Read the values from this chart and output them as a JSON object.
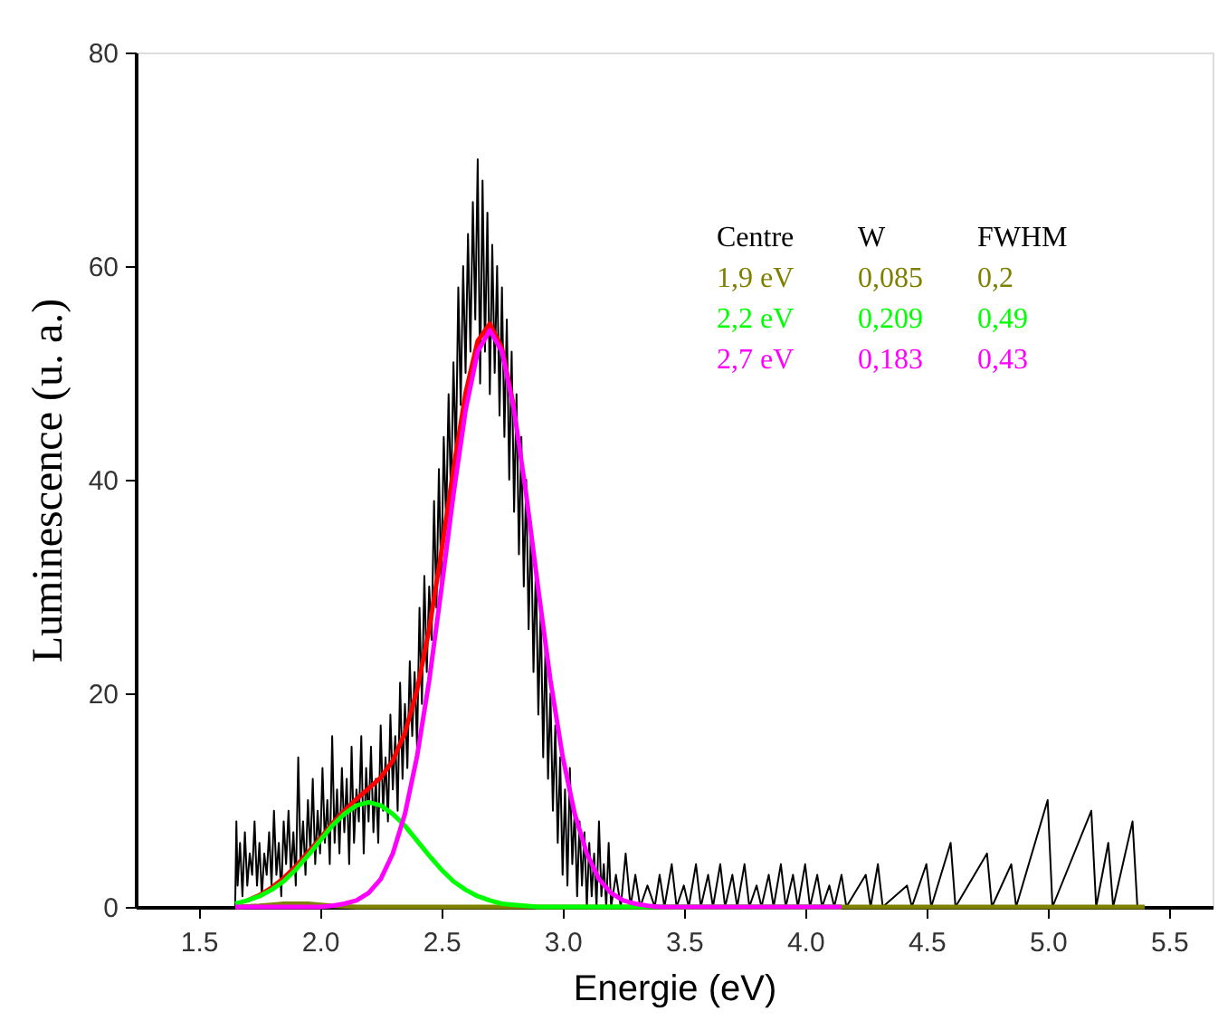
{
  "chart_data": {
    "type": "line",
    "xlabel": "Energie (eV)",
    "ylabel": "Luminescence (u. a.)",
    "xlim": [
      1.24,
      5.68
    ],
    "ylim": [
      0,
      80
    ],
    "xticks": [
      1.5,
      {
        "value": 2,
        "label": "2.0"
      },
      2.5,
      {
        "value": 3,
        "label": "3.0"
      },
      3.5,
      {
        "value": 4,
        "label": "4.0"
      },
      4.5,
      {
        "value": 5,
        "label": "5.0"
      },
      5.5
    ],
    "yticks": [
      0,
      20,
      40,
      60,
      80
    ],
    "grid": false,
    "marker": "none",
    "line_style": "solid",
    "annotations": [
      "Centre",
      "W",
      "FWHM",
      "1,9 eV",
      "0,085",
      "0,2",
      "2,2 eV",
      "0,209",
      "0,49",
      "2,7 eV",
      "0,183",
      "0,43"
    ],
    "series": [
      {
        "color": "#000000",
        "x": [
          1.65,
          1.655,
          1.66,
          1.67,
          1.68,
          1.69,
          1.7,
          1.71,
          1.72,
          1.73,
          1.74,
          1.75,
          1.76,
          1.77,
          1.78,
          1.79,
          1.8,
          1.81,
          1.82,
          1.83,
          1.84,
          1.85,
          1.86,
          1.87,
          1.88,
          1.89,
          1.9,
          1.91,
          1.92,
          1.93,
          1.94,
          1.95,
          1.96,
          1.97,
          1.98,
          1.99,
          2.0,
          2.01,
          2.02,
          2.03,
          2.04,
          2.05,
          2.06,
          2.07,
          2.08,
          2.09,
          2.1,
          2.11,
          2.12,
          2.13,
          2.14,
          2.15,
          2.16,
          2.17,
          2.18,
          2.19,
          2.2,
          2.21,
          2.22,
          2.23,
          2.24,
          2.25,
          2.26,
          2.27,
          2.28,
          2.29,
          2.3,
          2.31,
          2.32,
          2.33,
          2.34,
          2.35,
          2.36,
          2.37,
          2.38,
          2.39,
          2.4,
          2.41,
          2.42,
          2.43,
          2.44,
          2.45,
          2.46,
          2.47,
          2.48,
          2.49,
          2.5,
          2.51,
          2.52,
          2.53,
          2.54,
          2.55,
          2.56,
          2.57,
          2.58,
          2.59,
          2.6,
          2.61,
          2.62,
          2.63,
          2.64,
          2.65,
          2.66,
          2.67,
          2.68,
          2.69,
          2.7,
          2.71,
          2.72,
          2.73,
          2.74,
          2.75,
          2.76,
          2.77,
          2.78,
          2.79,
          2.8,
          2.81,
          2.82,
          2.83,
          2.84,
          2.85,
          2.86,
          2.87,
          2.88,
          2.89,
          2.9,
          2.91,
          2.92,
          2.93,
          2.94,
          2.95,
          2.96,
          2.97,
          2.98,
          2.99,
          3.0,
          3.01,
          3.02,
          3.03,
          3.04,
          3.05,
          3.06,
          3.07,
          3.08,
          3.09,
          3.1,
          3.11,
          3.12,
          3.13,
          3.14,
          3.15,
          3.16,
          3.17,
          3.18,
          3.19,
          3.2,
          3.22,
          3.24,
          3.26,
          3.28,
          3.3,
          3.32,
          3.35,
          3.38,
          3.4,
          3.42,
          3.45,
          3.47,
          3.5,
          3.52,
          3.55,
          3.57,
          3.6,
          3.62,
          3.65,
          3.67,
          3.7,
          3.72,
          3.75,
          3.77,
          3.8,
          3.82,
          3.85,
          3.87,
          3.9,
          3.92,
          3.95,
          3.97,
          4.0,
          4.02,
          4.05,
          4.07,
          4.1,
          4.12,
          4.15,
          4.17,
          4.25,
          4.27,
          4.3,
          4.32,
          4.42,
          4.44,
          4.5,
          4.52,
          4.6,
          4.62,
          4.75,
          4.77,
          4.85,
          4.87,
          5.0,
          5.02,
          5.18,
          5.2,
          5.25,
          5.27,
          5.35,
          5.37,
          5.4
        ],
        "values": [
          0,
          8,
          2,
          6,
          1,
          7,
          2,
          5,
          3,
          8,
          2,
          6,
          1,
          5,
          3,
          7,
          2,
          9,
          3,
          6,
          1,
          8,
          4,
          9,
          3,
          7,
          2,
          14,
          4,
          8,
          3,
          10,
          5,
          12,
          4,
          9,
          5,
          13,
          6,
          10,
          4,
          16,
          6,
          11,
          5,
          13,
          7,
          12,
          4,
          15,
          6,
          11,
          8,
          16,
          5,
          13,
          8,
          15,
          7,
          12,
          6,
          17,
          9,
          14,
          8,
          18,
          11,
          16,
          9,
          21,
          12,
          19,
          13,
          23,
          16,
          22,
          15,
          28,
          19,
          31,
          22,
          30,
          25,
          38,
          28,
          41,
          30,
          44,
          36,
          48,
          38,
          51,
          42,
          58,
          47,
          60,
          50,
          63,
          52,
          66,
          55,
          70,
          49,
          68,
          52,
          65,
          48,
          62,
          50,
          60,
          46,
          58,
          44,
          55,
          40,
          52,
          37,
          48,
          33,
          44,
          30,
          40,
          26,
          36,
          22,
          32,
          18,
          28,
          14,
          25,
          12,
          20,
          9,
          17,
          6,
          14,
          3,
          11,
          2,
          13,
          4,
          9,
          1,
          8,
          2,
          7,
          0,
          6,
          1,
          5,
          0,
          8,
          1,
          4,
          0,
          6,
          0,
          3,
          0,
          5,
          0,
          3,
          0,
          2,
          0,
          3,
          0,
          4,
          0,
          2,
          0,
          4,
          0,
          3,
          0,
          4,
          0,
          3,
          0,
          4,
          0,
          2,
          0,
          3,
          0,
          4,
          0,
          3,
          0,
          4,
          0,
          3,
          0,
          2,
          0,
          3,
          0,
          3,
          0,
          4,
          0,
          2,
          0,
          4,
          0,
          6,
          0,
          5,
          0,
          4,
          0,
          10,
          0,
          9,
          0,
          6,
          0,
          8,
          0,
          0
        ]
      },
      {
        "color": "#ff0000",
        "x": [
          1.7,
          1.75,
          1.8,
          1.85,
          1.9,
          1.95,
          2.0,
          2.05,
          2.1,
          2.15,
          2.2,
          2.25,
          2.3,
          2.35,
          2.4,
          2.45,
          2.5,
          2.55,
          2.6,
          2.65,
          2.7,
          2.75,
          2.8
        ],
        "values": [
          0.6,
          1.1,
          1.8,
          2.7,
          3.8,
          5.1,
          6.4,
          7.8,
          9.0,
          10.1,
          11.1,
          12.1,
          13.7,
          16.3,
          20.3,
          26.0,
          33.2,
          41.0,
          48.1,
          53.0,
          54.6,
          52.3,
          46.7
        ]
      },
      {
        "color": "#808000",
        "x": [
          1.65,
          1.75,
          1.8,
          1.85,
          1.9,
          1.95,
          2.0,
          2.05,
          2.15,
          5.4
        ],
        "values": [
          0,
          0.1,
          0.2,
          0.3,
          0.3,
          0.3,
          0.2,
          0.1,
          0,
          0
        ]
      },
      {
        "color": "#00ff00",
        "x": [
          1.65,
          1.7,
          1.75,
          1.8,
          1.85,
          1.9,
          1.95,
          2.0,
          2.05,
          2.1,
          2.15,
          2.2,
          2.25,
          2.3,
          2.35,
          2.4,
          2.45,
          2.5,
          2.55,
          2.6,
          2.65,
          2.7,
          2.75,
          2.8,
          2.9,
          3.0,
          4.15
        ],
        "values": [
          0.3,
          0.6,
          1.0,
          1.6,
          2.4,
          3.5,
          4.8,
          6.2,
          7.6,
          8.7,
          9.5,
          9.8,
          9.5,
          8.7,
          7.6,
          6.2,
          4.8,
          3.5,
          2.4,
          1.6,
          1.0,
          0.6,
          0.3,
          0.2,
          0,
          0,
          0
        ]
      },
      {
        "color": "#ff00ff",
        "x": [
          1.65,
          1.8,
          2.0,
          2.05,
          2.1,
          2.15,
          2.2,
          2.25,
          2.3,
          2.35,
          2.4,
          2.45,
          2.5,
          2.55,
          2.6,
          2.65,
          2.7,
          2.75,
          2.8,
          2.85,
          2.9,
          2.95,
          3.0,
          3.05,
          3.1,
          3.15,
          3.2,
          3.25,
          3.3,
          3.35,
          3.4,
          4.15
        ],
        "values": [
          0,
          0,
          0,
          0.1,
          0.3,
          0.6,
          1.3,
          2.6,
          5.0,
          8.7,
          14.1,
          21.2,
          29.7,
          38.6,
          46.5,
          52.0,
          54,
          52.0,
          46.5,
          38.6,
          29.7,
          21.2,
          14.1,
          8.7,
          5.0,
          2.6,
          1.3,
          0.6,
          0.3,
          0.1,
          0,
          0
        ]
      }
    ]
  }
}
